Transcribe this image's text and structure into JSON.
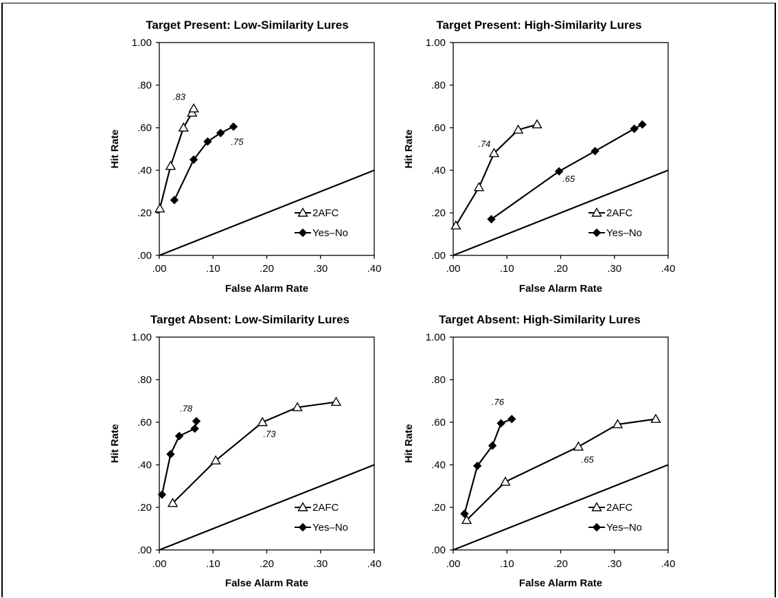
{
  "chart_data": [
    {
      "type": "line",
      "title": "Target Present: Low-Similarity Lures",
      "xlabel": "False Alarm Rate",
      "ylabel": "Hit Rate",
      "xlim": [
        0,
        0.4
      ],
      "ylim": [
        0,
        1.0
      ],
      "x_ticks": [
        ".00",
        ".10",
        ".20",
        ".30",
        ".40"
      ],
      "y_ticks": [
        ".00",
        ".20",
        ".40",
        ".60",
        ".80",
        "1.00"
      ],
      "legend_position": "bottom-right",
      "series": [
        {
          "name": "2AFC",
          "marker": "open-triangle",
          "x": [
            0.001,
            0.021,
            0.045,
            0.061,
            0.064
          ],
          "y": [
            0.22,
            0.42,
            0.6,
            0.67,
            0.69
          ]
        },
        {
          "name": "Yes–No",
          "marker": "filled-diamond",
          "x": [
            0.028,
            0.064,
            0.09,
            0.114,
            0.138
          ],
          "y": [
            0.26,
            0.45,
            0.535,
            0.575,
            0.605
          ]
        }
      ],
      "diagonal": {
        "x": [
          0,
          0.4
        ],
        "y": [
          0,
          0.4
        ]
      },
      "annotations": [
        {
          "text": ".83",
          "x": 0.037,
          "y": 0.73
        },
        {
          "text": ".75",
          "x": 0.145,
          "y": 0.52
        }
      ]
    },
    {
      "type": "line",
      "title": "Target Present: High-Similarity Lures",
      "xlabel": "False Alarm Rate",
      "ylabel": "Hit Rate",
      "xlim": [
        0,
        0.4
      ],
      "ylim": [
        0,
        1.0
      ],
      "x_ticks": [
        ".00",
        ".10",
        ".20",
        ".30",
        ".40"
      ],
      "y_ticks": [
        ".00",
        ".20",
        ".40",
        ".60",
        ".80",
        "1.00"
      ],
      "legend_position": "bottom-right",
      "series": [
        {
          "name": "2AFC",
          "marker": "open-triangle",
          "x": [
            0.005,
            0.048,
            0.076,
            0.121,
            0.156
          ],
          "y": [
            0.14,
            0.32,
            0.48,
            0.59,
            0.615
          ]
        },
        {
          "name": "Yes–No",
          "marker": "filled-diamond",
          "x": [
            0.071,
            0.197,
            0.264,
            0.337,
            0.352
          ],
          "y": [
            0.17,
            0.395,
            0.49,
            0.595,
            0.615
          ]
        }
      ],
      "diagonal": {
        "x": [
          0,
          0.4
        ],
        "y": [
          0,
          0.4
        ]
      },
      "annotations": [
        {
          "text": ".74",
          "x": 0.058,
          "y": 0.51
        },
        {
          "text": ".65",
          "x": 0.215,
          "y": 0.345
        }
      ]
    },
    {
      "type": "line",
      "title": "Target Absent: Low-Similarity Lures",
      "xlabel": "False Alarm Rate",
      "ylabel": "Hit Rate",
      "xlim": [
        0,
        0.4
      ],
      "ylim": [
        0,
        1.0
      ],
      "x_ticks": [
        ".00",
        ".10",
        ".20",
        ".30",
        ".40"
      ],
      "y_ticks": [
        ".00",
        ".20",
        ".40",
        ".60",
        ".80",
        "1.00"
      ],
      "legend_position": "bottom-right",
      "series": [
        {
          "name": "2AFC",
          "marker": "open-triangle",
          "x": [
            0.025,
            0.105,
            0.192,
            0.257,
            0.329
          ],
          "y": [
            0.22,
            0.42,
            0.6,
            0.67,
            0.695
          ]
        },
        {
          "name": "Yes–No",
          "marker": "filled-diamond",
          "x": [
            0.005,
            0.021,
            0.037,
            0.066,
            0.069
          ],
          "y": [
            0.26,
            0.45,
            0.535,
            0.57,
            0.605
          ]
        }
      ],
      "diagonal": {
        "x": [
          0,
          0.4
        ],
        "y": [
          0,
          0.4
        ]
      },
      "annotations": [
        {
          "text": ".78",
          "x": 0.05,
          "y": 0.65
        },
        {
          "text": ".73",
          "x": 0.205,
          "y": 0.53
        }
      ]
    },
    {
      "type": "line",
      "title": "Target Absent: High-Similarity Lures",
      "xlabel": "False Alarm Rate",
      "ylabel": "Hit Rate",
      "xlim": [
        0,
        0.4
      ],
      "ylim": [
        0,
        1.0
      ],
      "x_ticks": [
        ".00",
        ".10",
        ".20",
        ".30",
        ".40"
      ],
      "y_ticks": [
        ".00",
        ".20",
        ".40",
        ".60",
        ".80",
        "1.00"
      ],
      "legend_position": "bottom-right",
      "series": [
        {
          "name": "2AFC",
          "marker": "open-triangle",
          "x": [
            0.025,
            0.097,
            0.233,
            0.306,
            0.377
          ],
          "y": [
            0.14,
            0.32,
            0.485,
            0.59,
            0.615
          ]
        },
        {
          "name": "Yes–No",
          "marker": "filled-diamond",
          "x": [
            0.021,
            0.045,
            0.073,
            0.089,
            0.109
          ],
          "y": [
            0.17,
            0.395,
            0.49,
            0.595,
            0.615
          ]
        }
      ],
      "diagonal": {
        "x": [
          0,
          0.4
        ],
        "y": [
          0,
          0.4
        ]
      },
      "annotations": [
        {
          "text": ".76",
          "x": 0.083,
          "y": 0.68
        },
        {
          "text": ".65",
          "x": 0.25,
          "y": 0.41
        }
      ]
    }
  ]
}
